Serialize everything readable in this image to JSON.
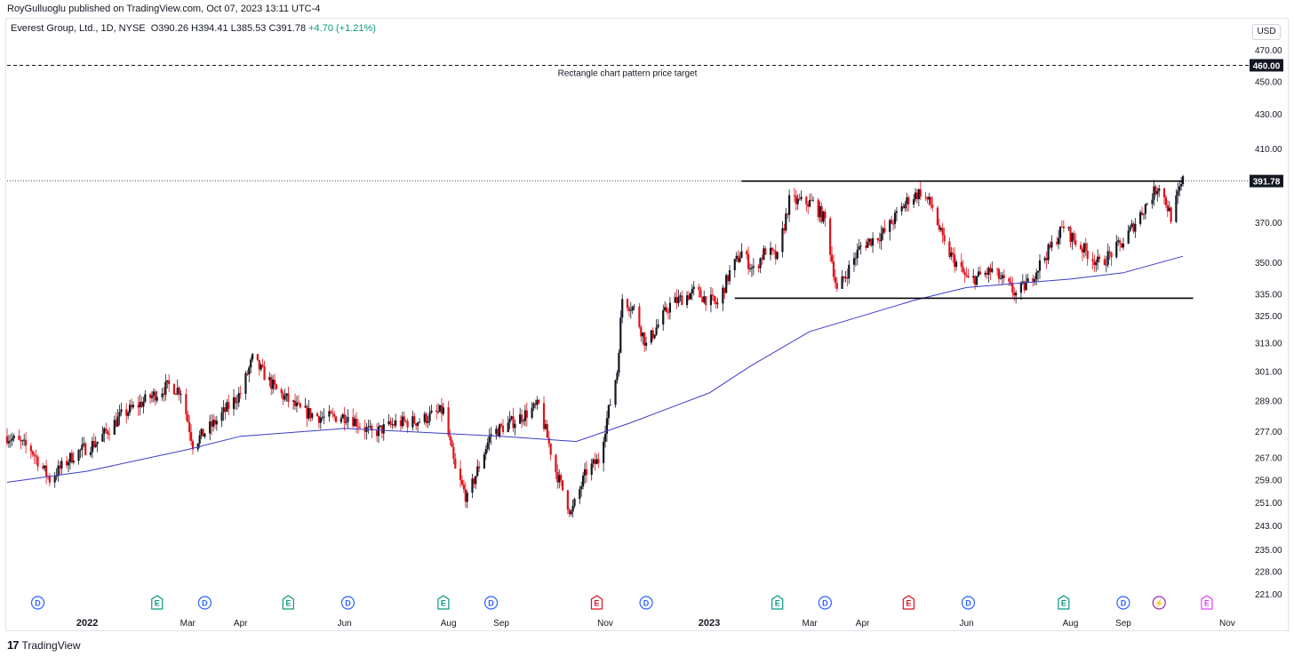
{
  "header": {
    "publisher_line": "RoyGulluoglu published on TradingView.com, Oct 07, 2023 13:11 UTC-4",
    "symbol_line": "Everest Group, Ltd., 1D, NYSE",
    "ohlc": "O390.26 H394.41 L385.53 C391.78",
    "change": "+4.70 (+1.21%)",
    "currency": "USD"
  },
  "footer": {
    "logo_mark": "17",
    "logo_text": "TradingView"
  },
  "colors": {
    "up": "#131722",
    "down": "#e0101a",
    "ma": "#3c3cc8",
    "line": "#000000",
    "grid_label": "#131722"
  },
  "chart_data": {
    "type": "candlestick",
    "title": "Everest Group, Ltd., 1D, NYSE",
    "price_scale": "log",
    "y_ticks": [
      470.0,
      450.0,
      430.0,
      410.0,
      370.0,
      350.0,
      335.0,
      325.0,
      313.0,
      301.0,
      289.0,
      277.0,
      267.0,
      259.0,
      251.0,
      243.0,
      235.0,
      228.0,
      221.0
    ],
    "y_tick_labels": [
      "470.00",
      "450.00",
      "430.00",
      "410.00",
      "370.00",
      "350.00",
      "335.00",
      "325.00",
      "313.00",
      "301.00",
      "289.00",
      "277.00",
      "267.00",
      "259.00",
      "251.00",
      "243.00",
      "235.00",
      "228.00",
      "221.00"
    ],
    "last_price": 391.78,
    "last_price_label": "391.78",
    "target_price": 460.0,
    "target_price_label": "460.00",
    "target_annotation": "Rectangle chart pattern price target",
    "x_labels": [
      {
        "label": "2022",
        "date": "2022-01-01"
      },
      {
        "label": "Mar",
        "date": "2022-03-01"
      },
      {
        "label": "Apr",
        "date": "2022-04-01"
      },
      {
        "label": "Jun",
        "date": "2022-06-01"
      },
      {
        "label": "Aug",
        "date": "2022-08-01"
      },
      {
        "label": "Sep",
        "date": "2022-09-01"
      },
      {
        "label": "Nov",
        "date": "2022-11-01"
      },
      {
        "label": "2023",
        "date": "2023-01-01"
      },
      {
        "label": "Mar",
        "date": "2023-03-01"
      },
      {
        "label": "Apr",
        "date": "2023-04-01"
      },
      {
        "label": "Jun",
        "date": "2023-06-01"
      },
      {
        "label": "Aug",
        "date": "2023-08-01"
      },
      {
        "label": "Sep",
        "date": "2023-09-01"
      },
      {
        "label": "Nov",
        "date": "2023-11-01"
      }
    ],
    "x_range": [
      "2021-11-15",
      "2023-11-12"
    ],
    "rectangle_pattern": {
      "resistance": 391.78,
      "support": 333.0,
      "resistance_from": "2023-01-20",
      "resistance_to": "2023-10-06",
      "support_from": "2023-01-16",
      "support_to": "2023-10-12"
    },
    "close_path": [
      [
        "2021-11-15",
        275
      ],
      [
        "2021-11-29",
        270
      ],
      [
        "2021-12-10",
        259
      ],
      [
        "2021-12-24",
        268
      ],
      [
        "2022-01-07",
        273
      ],
      [
        "2022-01-21",
        283
      ],
      [
        "2022-02-04",
        289
      ],
      [
        "2022-02-18",
        295
      ],
      [
        "2022-02-25",
        293
      ],
      [
        "2022-03-04",
        272
      ],
      [
        "2022-03-18",
        281
      ],
      [
        "2022-04-01",
        292
      ],
      [
        "2022-04-08",
        306
      ],
      [
        "2022-04-22",
        293
      ],
      [
        "2022-05-06",
        285
      ],
      [
        "2022-05-20",
        282
      ],
      [
        "2022-06-03",
        283
      ],
      [
        "2022-06-17",
        276
      ],
      [
        "2022-07-01",
        280
      ],
      [
        "2022-07-15",
        281
      ],
      [
        "2022-07-29",
        285
      ],
      [
        "2022-08-05",
        262
      ],
      [
        "2022-08-12",
        252
      ],
      [
        "2022-08-26",
        276
      ],
      [
        "2022-09-09",
        281
      ],
      [
        "2022-09-23",
        287
      ],
      [
        "2022-10-03",
        262
      ],
      [
        "2022-10-12",
        247
      ],
      [
        "2022-10-21",
        262
      ],
      [
        "2022-10-28",
        266
      ],
      [
        "2022-11-04",
        288
      ],
      [
        "2022-11-08",
        301
      ],
      [
        "2022-11-11",
        333
      ],
      [
        "2022-11-18",
        328
      ],
      [
        "2022-11-25",
        312
      ],
      [
        "2022-12-09",
        330
      ],
      [
        "2022-12-23",
        336
      ],
      [
        "2023-01-06",
        330
      ],
      [
        "2023-01-13",
        345
      ],
      [
        "2023-01-20",
        355
      ],
      [
        "2023-01-27",
        346
      ],
      [
        "2023-02-03",
        356
      ],
      [
        "2023-02-10",
        352
      ],
      [
        "2023-02-17",
        381
      ],
      [
        "2023-03-03",
        380
      ],
      [
        "2023-03-10",
        371
      ],
      [
        "2023-03-17",
        336
      ],
      [
        "2023-03-31",
        358
      ],
      [
        "2023-04-14",
        365
      ],
      [
        "2023-04-28",
        382
      ],
      [
        "2023-05-05",
        386
      ],
      [
        "2023-05-12",
        378
      ],
      [
        "2023-05-19",
        358
      ],
      [
        "2023-06-02",
        341
      ],
      [
        "2023-06-16",
        346
      ],
      [
        "2023-06-30",
        335
      ],
      [
        "2023-07-07",
        340
      ],
      [
        "2023-07-21",
        358
      ],
      [
        "2023-07-28",
        368
      ],
      [
        "2023-08-04",
        360
      ],
      [
        "2023-08-18",
        349
      ],
      [
        "2023-09-01",
        360
      ],
      [
        "2023-09-15",
        380
      ],
      [
        "2023-09-22",
        390
      ],
      [
        "2023-09-29",
        373
      ],
      [
        "2023-10-06",
        391.78
      ]
    ],
    "ma_path": [
      [
        "2021-11-15",
        258
      ],
      [
        "2022-01-01",
        262
      ],
      [
        "2022-03-01",
        270
      ],
      [
        "2022-04-01",
        275
      ],
      [
        "2022-06-01",
        278
      ],
      [
        "2022-08-01",
        276
      ],
      [
        "2022-09-01",
        275
      ],
      [
        "2022-10-15",
        273
      ],
      [
        "2022-11-15",
        280
      ],
      [
        "2023-01-01",
        292
      ],
      [
        "2023-01-25",
        303
      ],
      [
        "2023-03-01",
        318
      ],
      [
        "2023-04-01",
        325
      ],
      [
        "2023-05-01",
        332
      ],
      [
        "2023-06-01",
        338
      ],
      [
        "2023-07-01",
        340
      ],
      [
        "2023-08-01",
        342
      ],
      [
        "2023-09-01",
        345
      ],
      [
        "2023-10-06",
        353
      ]
    ],
    "event_markers": [
      {
        "date": "2021-12-03",
        "type": "D",
        "color": "#2962ff"
      },
      {
        "date": "2022-02-11",
        "type": "E",
        "color": "#089981"
      },
      {
        "date": "2022-03-11",
        "type": "D",
        "color": "#2962ff"
      },
      {
        "date": "2022-04-29",
        "type": "E",
        "color": "#089981"
      },
      {
        "date": "2022-06-03",
        "type": "D",
        "color": "#2962ff"
      },
      {
        "date": "2022-07-29",
        "type": "E",
        "color": "#089981"
      },
      {
        "date": "2022-08-26",
        "type": "D",
        "color": "#2962ff"
      },
      {
        "date": "2022-10-27",
        "type": "E",
        "color": "#e0101a"
      },
      {
        "date": "2022-11-25",
        "type": "D",
        "color": "#2962ff"
      },
      {
        "date": "2023-02-10",
        "type": "E",
        "color": "#089981"
      },
      {
        "date": "2023-03-10",
        "type": "D",
        "color": "#2962ff"
      },
      {
        "date": "2023-04-28",
        "type": "E",
        "color": "#e0101a"
      },
      {
        "date": "2023-06-02",
        "type": "D",
        "color": "#2962ff"
      },
      {
        "date": "2023-07-28",
        "type": "E",
        "color": "#089981"
      },
      {
        "date": "2023-09-01",
        "type": "D",
        "color": "#2962ff"
      },
      {
        "date": "2023-09-22",
        "type": "S",
        "color": "#9c27b0"
      },
      {
        "date": "2023-10-20",
        "type": "E",
        "color": "#e040fb"
      }
    ]
  }
}
